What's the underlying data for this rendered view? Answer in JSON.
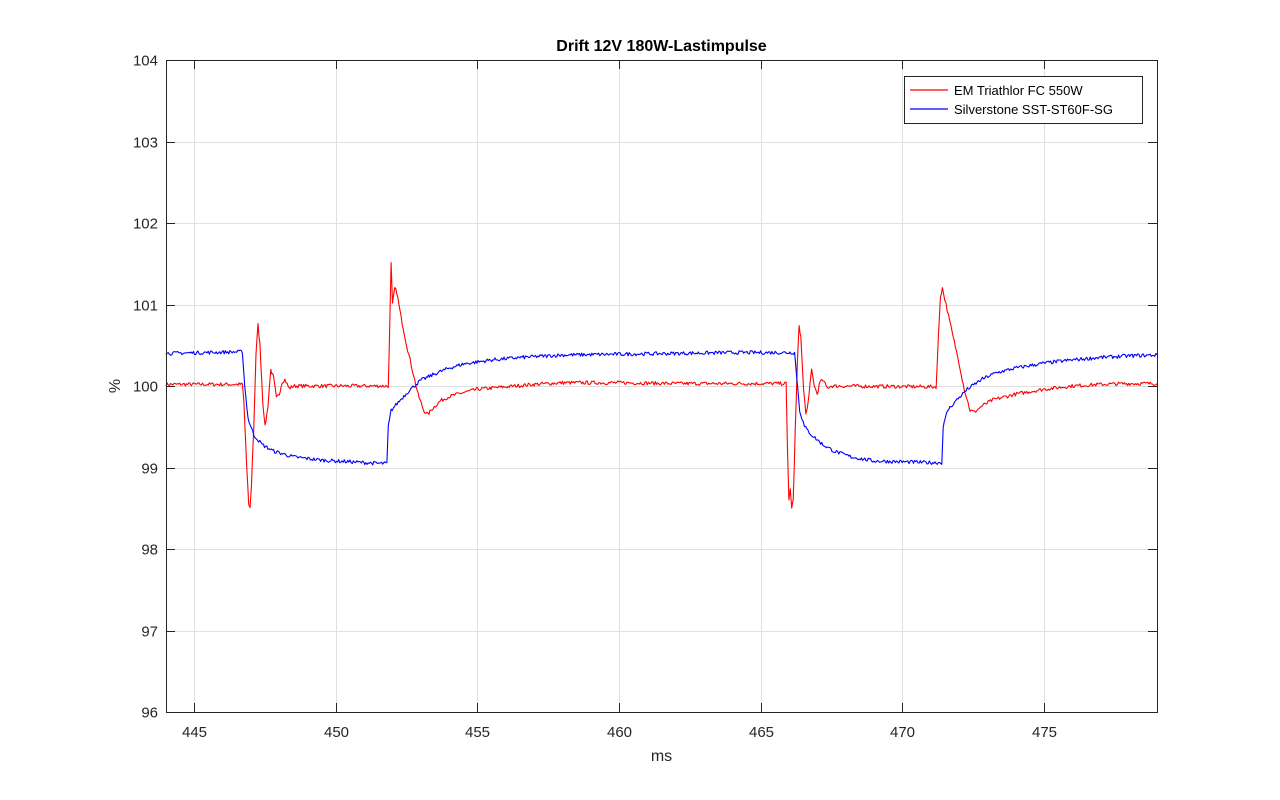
{
  "chart_data": {
    "type": "line",
    "title": "Drift 12V 180W-Lastimpulse",
    "xlabel": "ms",
    "ylabel": "%",
    "xlim": [
      444,
      479
    ],
    "ylim": [
      96,
      104
    ],
    "xticks": [
      445,
      450,
      455,
      460,
      465,
      470,
      475
    ],
    "yticks": [
      96,
      97,
      98,
      99,
      100,
      101,
      102,
      103,
      104
    ],
    "grid": true,
    "legend_position": "top-right",
    "series": [
      {
        "name": "EM Triathlor FC 550W",
        "color": "#ff0000",
        "points": [
          [
            444.0,
            100.02
          ],
          [
            446.7,
            100.02
          ],
          [
            446.75,
            99.8
          ],
          [
            446.85,
            99.0
          ],
          [
            446.92,
            98.55
          ],
          [
            446.97,
            98.5
          ],
          [
            447.02,
            98.8
          ],
          [
            447.1,
            99.5
          ],
          [
            447.18,
            100.4
          ],
          [
            447.25,
            100.75
          ],
          [
            447.32,
            100.5
          ],
          [
            447.42,
            99.8
          ],
          [
            447.5,
            99.5
          ],
          [
            447.6,
            99.75
          ],
          [
            447.7,
            100.2
          ],
          [
            447.8,
            100.1
          ],
          [
            447.9,
            99.85
          ],
          [
            448.0,
            99.9
          ],
          [
            448.1,
            100.05
          ],
          [
            448.2,
            100.08
          ],
          [
            448.35,
            99.97
          ],
          [
            448.5,
            100.0
          ],
          [
            451.85,
            100.0
          ],
          [
            451.9,
            100.7
          ],
          [
            451.95,
            101.5
          ],
          [
            452.0,
            101.0
          ],
          [
            452.08,
            101.2
          ],
          [
            452.15,
            101.15
          ],
          [
            452.3,
            100.85
          ],
          [
            452.5,
            100.5
          ],
          [
            452.7,
            100.2
          ],
          [
            452.9,
            99.9
          ],
          [
            453.1,
            99.7
          ],
          [
            453.25,
            99.65
          ],
          [
            453.4,
            99.72
          ],
          [
            453.7,
            99.82
          ],
          [
            454.0,
            99.87
          ],
          [
            454.5,
            99.92
          ],
          [
            455.0,
            99.96
          ],
          [
            456.0,
            99.99
          ],
          [
            457.0,
            100.02
          ],
          [
            458.0,
            100.04
          ],
          [
            460.0,
            100.04
          ],
          [
            462.0,
            100.03
          ],
          [
            464.0,
            100.03
          ],
          [
            465.9,
            100.03
          ],
          [
            465.95,
            99.2
          ],
          [
            466.0,
            98.6
          ],
          [
            466.05,
            98.75
          ],
          [
            466.1,
            98.5
          ],
          [
            466.15,
            98.6
          ],
          [
            466.22,
            99.4
          ],
          [
            466.3,
            100.3
          ],
          [
            466.36,
            100.75
          ],
          [
            466.42,
            100.6
          ],
          [
            466.52,
            99.95
          ],
          [
            466.6,
            99.65
          ],
          [
            466.7,
            99.85
          ],
          [
            466.8,
            100.2
          ],
          [
            466.9,
            100.0
          ],
          [
            467.0,
            99.9
          ],
          [
            467.1,
            100.05
          ],
          [
            467.2,
            100.07
          ],
          [
            467.35,
            99.98
          ],
          [
            467.5,
            100.0
          ],
          [
            471.2,
            99.99
          ],
          [
            471.28,
            100.6
          ],
          [
            471.35,
            101.1
          ],
          [
            471.42,
            101.2
          ],
          [
            471.55,
            101.0
          ],
          [
            471.8,
            100.6
          ],
          [
            472.0,
            100.3
          ],
          [
            472.2,
            99.95
          ],
          [
            472.4,
            99.7
          ],
          [
            472.55,
            99.68
          ],
          [
            472.8,
            99.75
          ],
          [
            473.2,
            99.83
          ],
          [
            474.0,
            99.9
          ],
          [
            475.0,
            99.96
          ],
          [
            476.0,
            100.0
          ],
          [
            477.0,
            100.02
          ],
          [
            478.0,
            100.03
          ],
          [
            479.0,
            100.03
          ]
        ]
      },
      {
        "name": "Silverstone SST-ST60F-SG",
        "color": "#0000ff",
        "points": [
          [
            444.0,
            100.4
          ],
          [
            446.7,
            100.42
          ],
          [
            446.78,
            100.0
          ],
          [
            446.9,
            99.6
          ],
          [
            447.1,
            99.4
          ],
          [
            447.4,
            99.28
          ],
          [
            447.8,
            99.2
          ],
          [
            448.5,
            99.13
          ],
          [
            449.5,
            99.09
          ],
          [
            450.5,
            99.07
          ],
          [
            451.5,
            99.05
          ],
          [
            451.8,
            99.05
          ],
          [
            451.85,
            99.5
          ],
          [
            451.95,
            99.7
          ],
          [
            452.2,
            99.8
          ],
          [
            452.6,
            99.95
          ],
          [
            453.0,
            100.07
          ],
          [
            453.5,
            100.15
          ],
          [
            454.0,
            100.22
          ],
          [
            454.5,
            100.27
          ],
          [
            455.5,
            100.32
          ],
          [
            456.5,
            100.35
          ],
          [
            458.0,
            100.38
          ],
          [
            460.0,
            100.39
          ],
          [
            462.0,
            100.4
          ],
          [
            464.0,
            100.41
          ],
          [
            466.2,
            100.41
          ],
          [
            466.28,
            100.1
          ],
          [
            466.38,
            99.7
          ],
          [
            466.55,
            99.5
          ],
          [
            466.8,
            99.4
          ],
          [
            467.2,
            99.28
          ],
          [
            467.6,
            99.2
          ],
          [
            468.2,
            99.13
          ],
          [
            469.0,
            99.08
          ],
          [
            470.0,
            99.07
          ],
          [
            471.0,
            99.06
          ],
          [
            471.4,
            99.06
          ],
          [
            471.45,
            99.5
          ],
          [
            471.6,
            99.7
          ],
          [
            471.9,
            99.82
          ],
          [
            472.3,
            99.96
          ],
          [
            472.8,
            100.08
          ],
          [
            473.3,
            100.16
          ],
          [
            474.0,
            100.22
          ],
          [
            475.0,
            100.28
          ],
          [
            476.0,
            100.32
          ],
          [
            477.0,
            100.35
          ],
          [
            478.0,
            100.37
          ],
          [
            479.0,
            100.38
          ]
        ]
      }
    ]
  }
}
